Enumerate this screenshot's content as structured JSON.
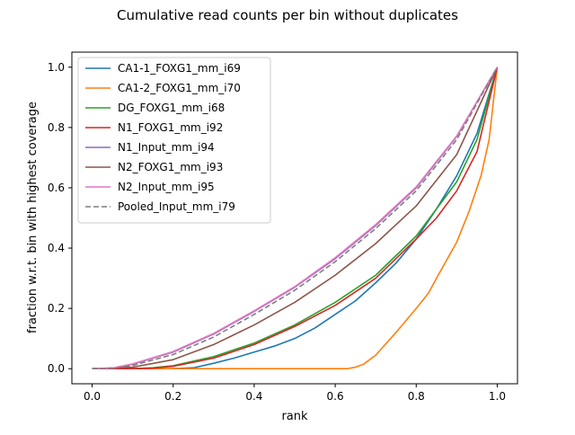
{
  "chart_data": {
    "type": "line",
    "title": "Cumulative read counts per bin without duplicates",
    "xlabel": "rank",
    "ylabel": "fraction w.r.t. bin with highest coverage",
    "xlim": [
      -0.05,
      1.05
    ],
    "ylim": [
      -0.05,
      1.05
    ],
    "xticks": [
      0.0,
      0.2,
      0.4,
      0.6,
      0.8,
      1.0
    ],
    "xtick_labels": [
      "0.0",
      "0.2",
      "0.4",
      "0.6",
      "0.8",
      "1.0"
    ],
    "yticks": [
      0.0,
      0.2,
      0.4,
      0.6,
      0.8,
      1.0
    ],
    "ytick_labels": [
      "0.0",
      "0.2",
      "0.4",
      "0.6",
      "0.8",
      "1.0"
    ],
    "grid": false,
    "legend_position": "upper-left",
    "series": [
      {
        "name": "CA1-1_FOXG1_mm_i69",
        "color": "#1f77b4",
        "dash": "solid",
        "x": [
          0.0,
          0.1,
          0.2,
          0.25,
          0.3,
          0.35,
          0.4,
          0.45,
          0.5,
          0.55,
          0.6,
          0.65,
          0.7,
          0.75,
          0.8,
          0.85,
          0.9,
          0.95,
          1.0
        ],
        "y": [
          0.0,
          0.0,
          0.0,
          0.003,
          0.018,
          0.035,
          0.055,
          0.075,
          0.1,
          0.135,
          0.18,
          0.225,
          0.285,
          0.35,
          0.43,
          0.53,
          0.64,
          0.78,
          1.0
        ]
      },
      {
        "name": "CA1-2_FOXG1_mm_i70",
        "color": "#ff7f0e",
        "dash": "solid",
        "x": [
          0.0,
          0.1,
          0.2,
          0.3,
          0.4,
          0.5,
          0.6,
          0.63,
          0.65,
          0.67,
          0.7,
          0.75,
          0.8,
          0.83,
          0.85,
          0.9,
          0.93,
          0.96,
          0.98,
          1.0
        ],
        "y": [
          0.0,
          0.0,
          0.0,
          0.0,
          0.0,
          0.0,
          0.0,
          0.0,
          0.005,
          0.015,
          0.045,
          0.12,
          0.2,
          0.25,
          0.3,
          0.42,
          0.52,
          0.64,
          0.76,
          1.0
        ]
      },
      {
        "name": "DG_FOXG1_mm_i68",
        "color": "#2ca02c",
        "dash": "solid",
        "x": [
          0.0,
          0.1,
          0.15,
          0.2,
          0.3,
          0.4,
          0.5,
          0.6,
          0.7,
          0.8,
          0.9,
          0.95,
          1.0
        ],
        "y": [
          0.0,
          0.0,
          0.003,
          0.01,
          0.04,
          0.085,
          0.145,
          0.22,
          0.31,
          0.44,
          0.62,
          0.76,
          1.0
        ]
      },
      {
        "name": "N1_FOXG1_mm_i92",
        "color": "#d62728",
        "dash": "solid",
        "x": [
          0.0,
          0.1,
          0.15,
          0.2,
          0.3,
          0.4,
          0.5,
          0.6,
          0.7,
          0.8,
          0.85,
          0.9,
          0.95,
          1.0
        ],
        "y": [
          0.0,
          0.0,
          0.002,
          0.008,
          0.035,
          0.08,
          0.14,
          0.21,
          0.3,
          0.43,
          0.5,
          0.59,
          0.72,
          1.0
        ]
      },
      {
        "name": "N1_Input_mm_i94",
        "color": "#9467bd",
        "dash": "solid",
        "x": [
          0.0,
          0.05,
          0.1,
          0.2,
          0.3,
          0.4,
          0.5,
          0.6,
          0.7,
          0.8,
          0.9,
          1.0
        ],
        "y": [
          0.0,
          0.002,
          0.015,
          0.055,
          0.115,
          0.19,
          0.27,
          0.365,
          0.475,
          0.6,
          0.77,
          1.0
        ]
      },
      {
        "name": "N2_FOXG1_mm_i93",
        "color": "#8c564b",
        "dash": "solid",
        "x": [
          0.0,
          0.1,
          0.2,
          0.3,
          0.4,
          0.5,
          0.6,
          0.7,
          0.8,
          0.9,
          1.0
        ],
        "y": [
          0.0,
          0.005,
          0.03,
          0.08,
          0.145,
          0.22,
          0.31,
          0.415,
          0.54,
          0.71,
          1.0
        ]
      },
      {
        "name": "N2_Input_mm_i95",
        "color": "#e377c2",
        "dash": "solid",
        "x": [
          0.0,
          0.05,
          0.1,
          0.2,
          0.3,
          0.4,
          0.5,
          0.6,
          0.7,
          0.8,
          0.9,
          1.0
        ],
        "y": [
          0.0,
          0.002,
          0.016,
          0.057,
          0.117,
          0.192,
          0.272,
          0.368,
          0.478,
          0.603,
          0.772,
          1.0
        ]
      },
      {
        "name": "Pooled_Input_mm_i79",
        "color": "#7f7f7f",
        "dash": "dashed",
        "x": [
          0.0,
          0.05,
          0.1,
          0.2,
          0.3,
          0.4,
          0.5,
          0.6,
          0.7,
          0.8,
          0.9,
          1.0
        ],
        "y": [
          0.0,
          0.001,
          0.011,
          0.047,
          0.105,
          0.18,
          0.26,
          0.355,
          0.465,
          0.59,
          0.76,
          1.0
        ]
      }
    ]
  }
}
